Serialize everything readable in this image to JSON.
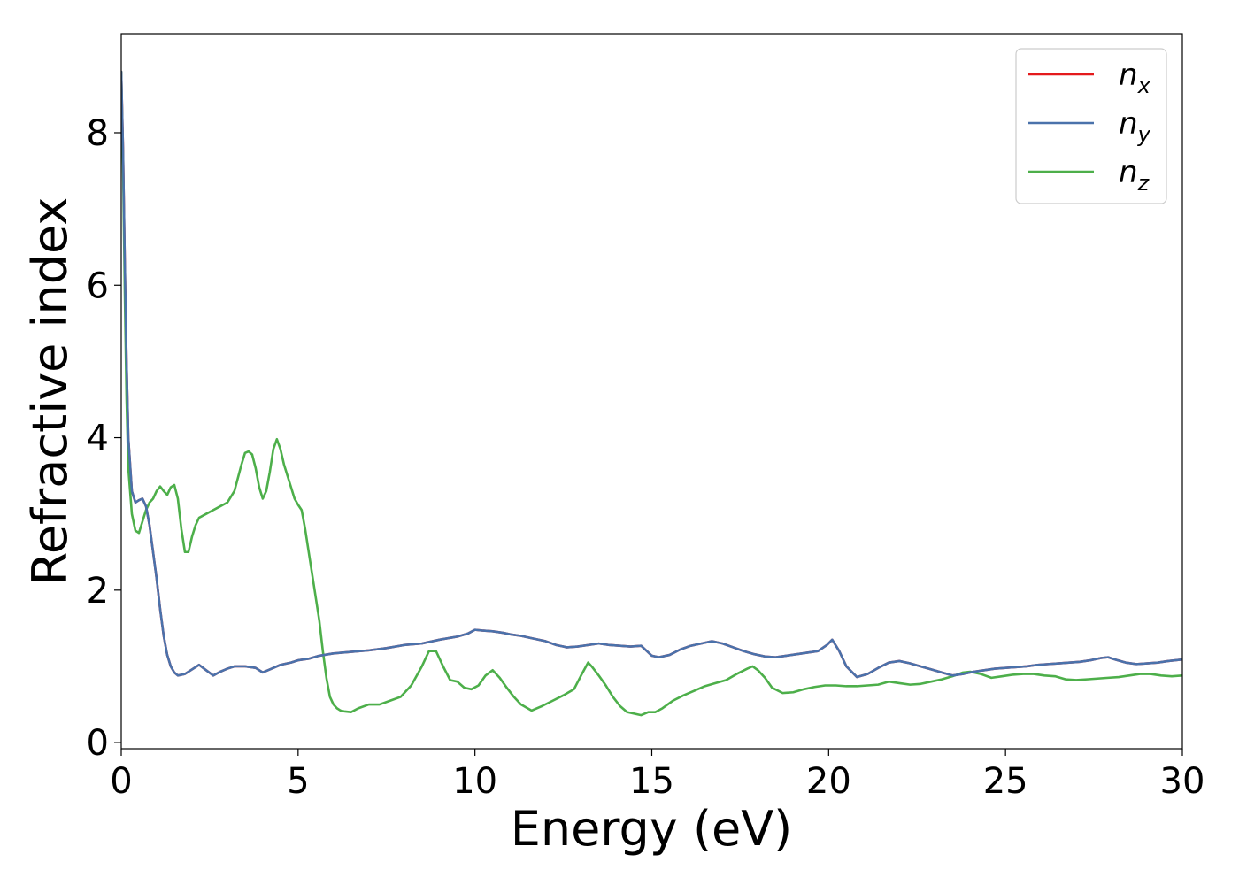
{
  "chart_data": {
    "type": "line",
    "xlabel": "Energy (eV)",
    "ylabel": "Refractive index",
    "xlim": [
      0,
      30
    ],
    "ylim": [
      -0.08,
      9.3
    ],
    "xticks": [
      "0",
      "5",
      "10",
      "15",
      "20",
      "25",
      "30"
    ],
    "yticks": [
      "0",
      "2",
      "4",
      "6",
      "8"
    ],
    "grid": false,
    "legend_position": "top-right",
    "series": [
      {
        "name": "n_x",
        "legend_base": "n",
        "legend_sub": "x",
        "color": "#e41a1c",
        "x": [
          0,
          0.05,
          0.1,
          0.15,
          0.2,
          0.3,
          0.4,
          0.5,
          0.6,
          0.7,
          0.8,
          0.9,
          1.0,
          1.1,
          1.2,
          1.3,
          1.4,
          1.5,
          1.6,
          1.8,
          2.0,
          2.2,
          2.4,
          2.6,
          2.8,
          3.0,
          3.2,
          3.5,
          3.8,
          4.0,
          4.2,
          4.5,
          4.8,
          5.0,
          5.3,
          5.6,
          6.0,
          6.5,
          7.0,
          7.5,
          8.0,
          8.5,
          9.0,
          9.5,
          9.8,
          10.0,
          10.2,
          10.5,
          10.8,
          11.0,
          11.3,
          11.6,
          12.0,
          12.3,
          12.6,
          12.9,
          13.2,
          13.5,
          13.8,
          14.1,
          14.4,
          14.7,
          15.0,
          15.2,
          15.5,
          15.8,
          16.1,
          16.4,
          16.7,
          17.0,
          17.3,
          17.6,
          17.9,
          18.2,
          18.5,
          18.8,
          19.1,
          19.4,
          19.7,
          19.95,
          20.1,
          20.3,
          20.5,
          20.8,
          21.1,
          21.4,
          21.7,
          22.0,
          22.3,
          22.6,
          22.9,
          23.2,
          23.5,
          23.8,
          24.1,
          24.4,
          24.7,
          25.0,
          25.3,
          25.6,
          25.9,
          26.2,
          26.5,
          26.8,
          27.1,
          27.4,
          27.7,
          27.9,
          28.1,
          28.4,
          28.7,
          29.0,
          29.3,
          29.6,
          30.0
        ],
        "y": [
          8.8,
          7.8,
          6.3,
          5.0,
          4.0,
          3.3,
          3.15,
          3.18,
          3.2,
          3.1,
          2.85,
          2.5,
          2.15,
          1.75,
          1.4,
          1.15,
          1.0,
          0.92,
          0.88,
          0.9,
          0.96,
          1.02,
          0.95,
          0.88,
          0.93,
          0.97,
          1.0,
          1.0,
          0.98,
          0.92,
          0.96,
          1.02,
          1.05,
          1.08,
          1.1,
          1.14,
          1.17,
          1.19,
          1.21,
          1.24,
          1.28,
          1.3,
          1.35,
          1.39,
          1.43,
          1.48,
          1.47,
          1.46,
          1.44,
          1.42,
          1.4,
          1.37,
          1.33,
          1.28,
          1.25,
          1.26,
          1.28,
          1.3,
          1.28,
          1.27,
          1.26,
          1.27,
          1.14,
          1.12,
          1.15,
          1.22,
          1.27,
          1.3,
          1.33,
          1.3,
          1.25,
          1.2,
          1.16,
          1.13,
          1.12,
          1.14,
          1.16,
          1.18,
          1.2,
          1.28,
          1.35,
          1.2,
          1.0,
          0.86,
          0.9,
          0.98,
          1.05,
          1.07,
          1.04,
          1.0,
          0.96,
          0.92,
          0.88,
          0.9,
          0.93,
          0.95,
          0.97,
          0.98,
          0.99,
          1.0,
          1.02,
          1.03,
          1.04,
          1.05,
          1.06,
          1.08,
          1.11,
          1.12,
          1.09,
          1.05,
          1.03,
          1.04,
          1.05,
          1.07,
          1.09
        ]
      },
      {
        "name": "n_y",
        "legend_base": "n",
        "legend_sub": "y",
        "color": "#4a72ab",
        "x": [
          0,
          0.05,
          0.1,
          0.15,
          0.2,
          0.3,
          0.4,
          0.5,
          0.6,
          0.7,
          0.8,
          0.9,
          1.0,
          1.1,
          1.2,
          1.3,
          1.4,
          1.5,
          1.6,
          1.8,
          2.0,
          2.2,
          2.4,
          2.6,
          2.8,
          3.0,
          3.2,
          3.5,
          3.8,
          4.0,
          4.2,
          4.5,
          4.8,
          5.0,
          5.3,
          5.6,
          6.0,
          6.5,
          7.0,
          7.5,
          8.0,
          8.5,
          9.0,
          9.5,
          9.8,
          10.0,
          10.2,
          10.5,
          10.8,
          11.0,
          11.3,
          11.6,
          12.0,
          12.3,
          12.6,
          12.9,
          13.2,
          13.5,
          13.8,
          14.1,
          14.4,
          14.7,
          15.0,
          15.2,
          15.5,
          15.8,
          16.1,
          16.4,
          16.7,
          17.0,
          17.3,
          17.6,
          17.9,
          18.2,
          18.5,
          18.8,
          19.1,
          19.4,
          19.7,
          19.95,
          20.1,
          20.3,
          20.5,
          20.8,
          21.1,
          21.4,
          21.7,
          22.0,
          22.3,
          22.6,
          22.9,
          23.2,
          23.5,
          23.8,
          24.1,
          24.4,
          24.7,
          25.0,
          25.3,
          25.6,
          25.9,
          26.2,
          26.5,
          26.8,
          27.1,
          27.4,
          27.7,
          27.9,
          28.1,
          28.4,
          28.7,
          29.0,
          29.3,
          29.6,
          30.0
        ],
        "y": [
          8.8,
          7.8,
          6.3,
          5.0,
          4.0,
          3.3,
          3.15,
          3.18,
          3.2,
          3.1,
          2.85,
          2.5,
          2.15,
          1.75,
          1.4,
          1.15,
          1.0,
          0.92,
          0.88,
          0.9,
          0.96,
          1.02,
          0.95,
          0.88,
          0.93,
          0.97,
          1.0,
          1.0,
          0.98,
          0.92,
          0.96,
          1.02,
          1.05,
          1.08,
          1.1,
          1.14,
          1.17,
          1.19,
          1.21,
          1.24,
          1.28,
          1.3,
          1.35,
          1.39,
          1.43,
          1.48,
          1.47,
          1.46,
          1.44,
          1.42,
          1.4,
          1.37,
          1.33,
          1.28,
          1.25,
          1.26,
          1.28,
          1.3,
          1.28,
          1.27,
          1.26,
          1.27,
          1.14,
          1.12,
          1.15,
          1.22,
          1.27,
          1.3,
          1.33,
          1.3,
          1.25,
          1.2,
          1.16,
          1.13,
          1.12,
          1.14,
          1.16,
          1.18,
          1.2,
          1.28,
          1.35,
          1.2,
          1.0,
          0.86,
          0.9,
          0.98,
          1.05,
          1.07,
          1.04,
          1.0,
          0.96,
          0.92,
          0.88,
          0.9,
          0.93,
          0.95,
          0.97,
          0.98,
          0.99,
          1.0,
          1.02,
          1.03,
          1.04,
          1.05,
          1.06,
          1.08,
          1.11,
          1.12,
          1.09,
          1.05,
          1.03,
          1.04,
          1.05,
          1.07,
          1.09
        ]
      },
      {
        "name": "n_z",
        "legend_base": "n",
        "legend_sub": "z",
        "color": "#4daf4a",
        "x": [
          0,
          0.05,
          0.1,
          0.15,
          0.2,
          0.3,
          0.4,
          0.5,
          0.6,
          0.7,
          0.8,
          0.9,
          1.0,
          1.1,
          1.2,
          1.3,
          1.4,
          1.5,
          1.6,
          1.7,
          1.8,
          1.9,
          2.0,
          2.1,
          2.2,
          2.4,
          2.6,
          2.8,
          3.0,
          3.2,
          3.4,
          3.5,
          3.6,
          3.7,
          3.8,
          3.9,
          4.0,
          4.1,
          4.2,
          4.3,
          4.4,
          4.5,
          4.6,
          4.7,
          4.8,
          4.9,
          5.0,
          5.1,
          5.2,
          5.3,
          5.4,
          5.5,
          5.6,
          5.7,
          5.8,
          5.9,
          6.0,
          6.1,
          6.2,
          6.3,
          6.5,
          6.7,
          7.0,
          7.3,
          7.6,
          7.9,
          8.2,
          8.5,
          8.7,
          8.9,
          9.1,
          9.3,
          9.5,
          9.7,
          9.9,
          10.1,
          10.3,
          10.5,
          10.7,
          10.9,
          11.1,
          11.3,
          11.6,
          11.9,
          12.2,
          12.5,
          12.8,
          13.0,
          13.2,
          13.3,
          13.5,
          13.7,
          13.9,
          14.1,
          14.3,
          14.5,
          14.7,
          14.9,
          15.1,
          15.3,
          15.6,
          15.9,
          16.2,
          16.5,
          16.8,
          17.1,
          17.4,
          17.7,
          17.85,
          18.0,
          18.2,
          18.4,
          18.7,
          19.0,
          19.3,
          19.6,
          19.9,
          20.2,
          20.5,
          20.8,
          21.1,
          21.4,
          21.7,
          22.0,
          22.3,
          22.6,
          22.9,
          23.2,
          23.5,
          23.8,
          24.0,
          24.3,
          24.6,
          24.9,
          25.2,
          25.5,
          25.8,
          26.1,
          26.4,
          26.7,
          27.0,
          27.3,
          27.6,
          27.9,
          28.2,
          28.5,
          28.8,
          29.1,
          29.4,
          29.7,
          30.0
        ],
        "y": [
          8.8,
          7.6,
          5.9,
          4.5,
          3.6,
          3.0,
          2.78,
          2.75,
          2.9,
          3.05,
          3.15,
          3.2,
          3.3,
          3.36,
          3.3,
          3.25,
          3.35,
          3.38,
          3.2,
          2.8,
          2.5,
          2.5,
          2.7,
          2.85,
          2.95,
          3.0,
          3.05,
          3.1,
          3.15,
          3.3,
          3.65,
          3.8,
          3.82,
          3.78,
          3.6,
          3.35,
          3.2,
          3.3,
          3.55,
          3.85,
          3.98,
          3.85,
          3.65,
          3.5,
          3.35,
          3.2,
          3.12,
          3.05,
          2.8,
          2.5,
          2.2,
          1.9,
          1.6,
          1.2,
          0.85,
          0.6,
          0.5,
          0.45,
          0.42,
          0.41,
          0.4,
          0.45,
          0.5,
          0.5,
          0.55,
          0.6,
          0.75,
          1.0,
          1.2,
          1.2,
          1.0,
          0.82,
          0.8,
          0.72,
          0.7,
          0.75,
          0.88,
          0.95,
          0.85,
          0.72,
          0.6,
          0.5,
          0.42,
          0.48,
          0.55,
          0.62,
          0.7,
          0.88,
          1.05,
          1.0,
          0.88,
          0.75,
          0.6,
          0.48,
          0.4,
          0.38,
          0.36,
          0.4,
          0.4,
          0.45,
          0.55,
          0.62,
          0.68,
          0.74,
          0.78,
          0.82,
          0.9,
          0.97,
          1.0,
          0.95,
          0.85,
          0.72,
          0.65,
          0.66,
          0.7,
          0.73,
          0.75,
          0.75,
          0.74,
          0.74,
          0.75,
          0.76,
          0.8,
          0.78,
          0.76,
          0.77,
          0.8,
          0.83,
          0.87,
          0.92,
          0.93,
          0.9,
          0.85,
          0.87,
          0.89,
          0.9,
          0.9,
          0.88,
          0.87,
          0.83,
          0.82,
          0.83,
          0.84,
          0.85,
          0.86,
          0.88,
          0.9,
          0.9,
          0.88,
          0.87,
          0.88
        ]
      }
    ]
  }
}
